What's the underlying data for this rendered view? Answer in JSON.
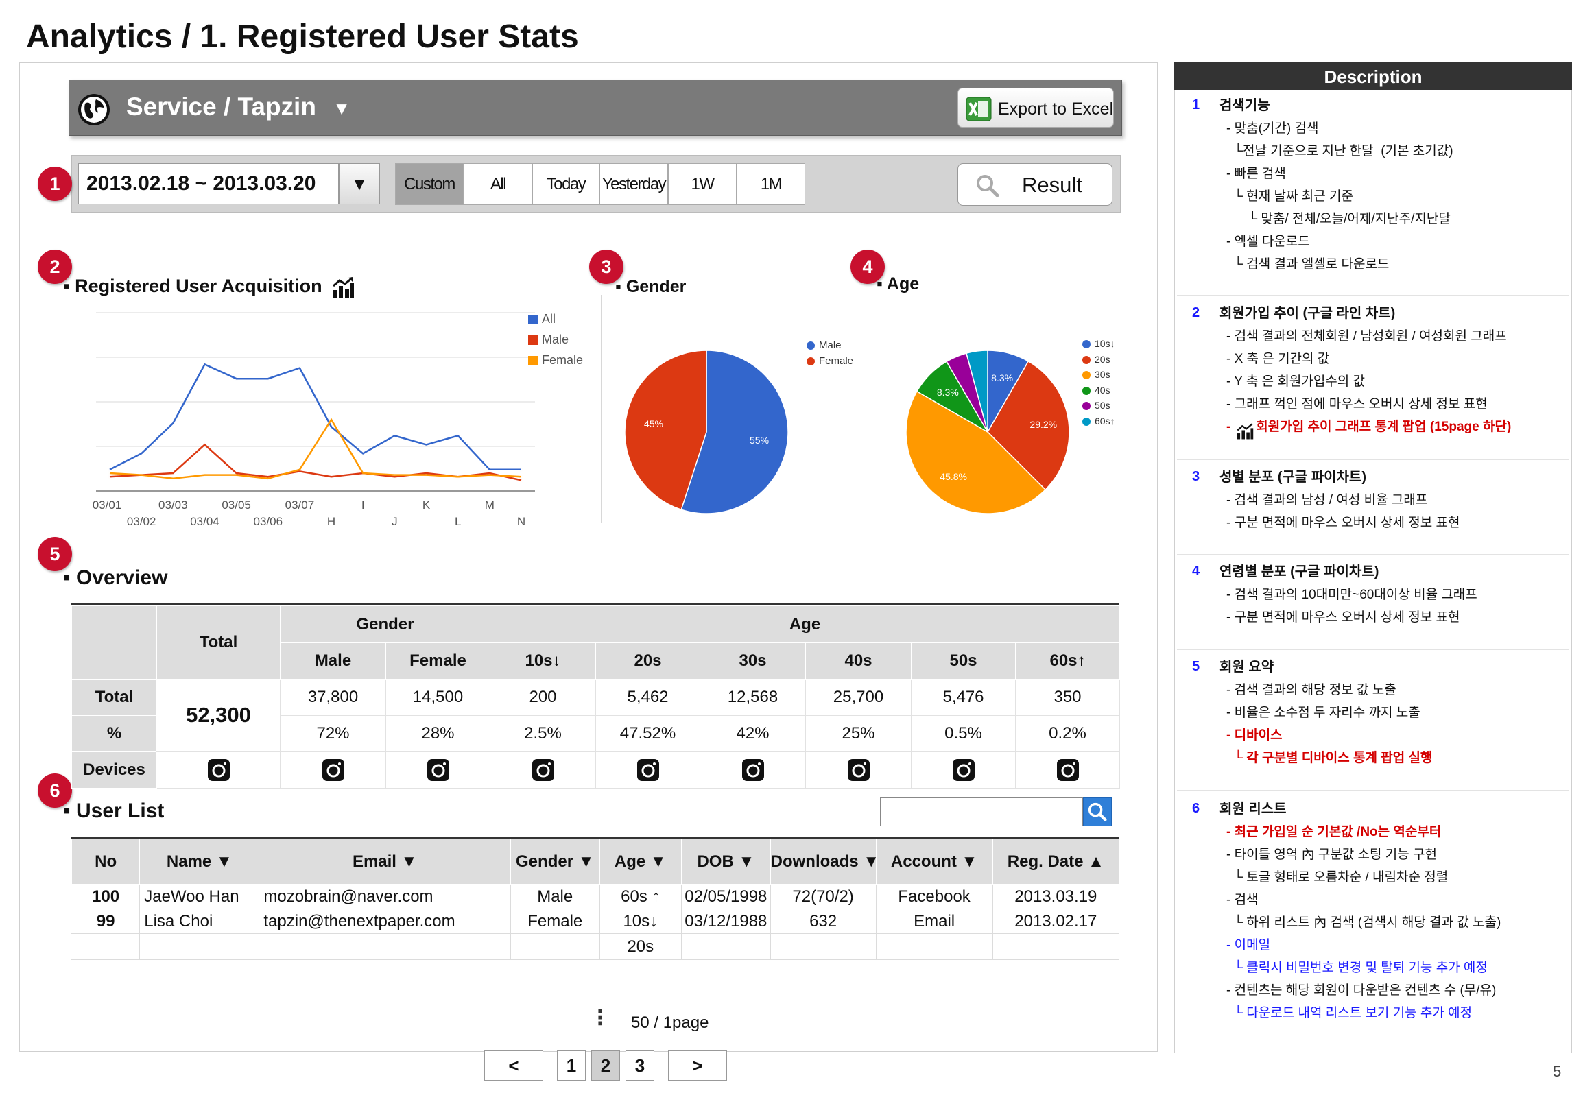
{
  "page": {
    "title": "Analytics / 1. Registered User Stats",
    "number": "5"
  },
  "header": {
    "service_title": "Service / Tapzin",
    "dropdown_glyph": "▼",
    "export_label": "Export to Excel"
  },
  "filter": {
    "date_range": "2013.02.18 ~ 2013.03.20",
    "dropdown_glyph": "▼",
    "quick_buttons": [
      "Custom",
      "All",
      "Today",
      "Yesterday",
      "1W",
      "1M"
    ],
    "active_button": "Custom",
    "result_label": "Result"
  },
  "badges": [
    "1",
    "2",
    "3",
    "4",
    "5",
    "6"
  ],
  "sections": {
    "acquisition": "Registered User Acquisition",
    "gender": "Gender",
    "age": "Age",
    "overview": "Overview",
    "user_list": "User List"
  },
  "chart_data": [
    {
      "type": "line",
      "title": "Registered User Acquisition",
      "categories": [
        "03/01",
        "03/02",
        "03/03",
        "03/04",
        "03/05",
        "03/06",
        "03/07",
        "H",
        "I",
        "J",
        "K",
        "L",
        "M",
        "N"
      ],
      "series": [
        {
          "name": "All",
          "color": "#3366cc",
          "values": [
            12,
            21,
            38,
            71,
            63,
            63,
            69,
            36,
            21,
            31,
            26,
            31,
            12,
            12
          ]
        },
        {
          "name": "Male",
          "color": "#dc3912",
          "values": [
            8,
            9,
            10,
            26,
            10,
            8,
            11,
            8,
            10,
            8,
            10,
            8,
            10,
            6
          ]
        },
        {
          "name": "Female",
          "color": "#ff9900",
          "values": [
            10,
            9,
            7,
            9,
            9,
            7,
            12,
            40,
            10,
            9,
            9,
            8,
            9,
            8
          ]
        }
      ],
      "ylim": [
        0,
        100
      ],
      "grid": true,
      "legend": "right"
    },
    {
      "type": "pie",
      "title": "Gender",
      "slices": [
        {
          "label": "Male",
          "value": 55,
          "display": "55%",
          "color": "#3366cc"
        },
        {
          "label": "Female",
          "value": 45,
          "display": "45%",
          "color": "#dc3912"
        }
      ],
      "legend": "top-right"
    },
    {
      "type": "pie",
      "title": "Age",
      "slices": [
        {
          "label": "10s↓",
          "value": 8.3,
          "display": "8.3%",
          "color": "#3366cc"
        },
        {
          "label": "20s",
          "value": 29.2,
          "display": "29.2%",
          "color": "#dc3912"
        },
        {
          "label": "30s",
          "value": 45.8,
          "display": "45.8%",
          "color": "#ff9900"
        },
        {
          "label": "40s",
          "value": 8.3,
          "display": "8.3%",
          "color": "#109618"
        },
        {
          "label": "50s",
          "value": 4.2,
          "display": "",
          "color": "#990099"
        },
        {
          "label": "60s↑",
          "value": 4.2,
          "display": "",
          "color": "#0099c6"
        }
      ],
      "legend": "right"
    }
  ],
  "overview": {
    "total_header": "Total",
    "gender_header": "Gender",
    "age_header": "Age",
    "sub_headers": [
      "Male",
      "Female",
      "10s↓",
      "20s",
      "30s",
      "40s",
      "50s",
      "60s↑"
    ],
    "row_labels": [
      "Total",
      "%",
      "Devices"
    ],
    "total_value": "52,300",
    "totals": [
      "37,800",
      "14,500",
      "200",
      "5,462",
      "12,568",
      "25,700",
      "5,476",
      "350"
    ],
    "percents": [
      "72%",
      "28%",
      "2.5%",
      "47.52%",
      "42%",
      "25%",
      "0.5%",
      "0.2%"
    ],
    "device_icon": "camera-icon"
  },
  "user_list": {
    "search_value": "",
    "columns": [
      "No",
      "Name ▼",
      "Email ▼",
      "Gender ▼",
      "Age ▼",
      "DOB ▼",
      "Downloads ▼",
      "Account ▼",
      "Reg. Date ▲"
    ],
    "rows": [
      [
        "100",
        "JaeWoo Han",
        "mozobrain@naver.com",
        "Male",
        "60s ↑",
        "02/05/1998",
        "72(70/2)",
        "Facebook",
        "2013.03.19"
      ],
      [
        "99",
        "Lisa Choi",
        "tapzin@thenextpaper.com",
        "Female",
        "10s↓",
        "03/12/1988",
        "632",
        "Email",
        "2013.02.17"
      ],
      [
        "",
        "",
        "",
        "",
        "20s",
        "",
        "",
        "",
        ""
      ]
    ],
    "more_glyph": "⋮",
    "page_summary": "50 / 1page"
  },
  "pagination": {
    "prev": "<",
    "pages": [
      "1",
      "2",
      "3"
    ],
    "active": "2",
    "next": ">"
  },
  "description": {
    "header": "Description",
    "items": [
      {
        "num": "1",
        "title": "검색기능",
        "lines": [
          {
            "text": "- 맞춤(기간) 검색",
            "style": ""
          },
          {
            "text": "  └전날 기준으로 지난 한달  (기본 초기값)",
            "style": ""
          },
          {
            "text": "- 빠른 검색",
            "style": ""
          },
          {
            "text": "  └ 현재 날짜 최근 기준",
            "style": ""
          },
          {
            "text": "      └ 맞춤/ 전체/오늘/어제/지난주/지난달",
            "style": ""
          },
          {
            "text": "- 엑셀 다운로드",
            "style": ""
          },
          {
            "text": "  └ 검색 결과 엘셀로 다운로드",
            "style": ""
          }
        ]
      },
      {
        "num": "2",
        "title": "회원가입 추이 (구글 라인 차트)",
        "lines": [
          {
            "text": "- 검색 결과의 전체회원 / 남성회원 / 여성회원 그래프",
            "style": ""
          },
          {
            "text": "- X 축 은 기간의 값",
            "style": ""
          },
          {
            "text": "- Y 축 은 회원가입수의 값",
            "style": ""
          },
          {
            "text": "- 그래프 꺽인 점에 마우스 오버시 상세 정보 표현",
            "style": ""
          },
          {
            "text": "-       회원가입 추이 그래프 통계 팝업 (15page 하단)",
            "style": "red"
          }
        ]
      },
      {
        "num": "3",
        "title": "성별 분포 (구글 파이차트)",
        "lines": [
          {
            "text": "- 검색 결과의 남성 / 여성 비율 그래프",
            "style": ""
          },
          {
            "text": "- 구분 면적에 마우스 오버시 상세 정보 표현",
            "style": ""
          }
        ]
      },
      {
        "num": "4",
        "title": "연령별 분포 (구글 파이차트)",
        "lines": [
          {
            "text": "- 검색 결과의 10대미만~60대이상 비율 그래프",
            "style": ""
          },
          {
            "text": "- 구분 면적에 마우스 오버시 상세 정보 표현",
            "style": ""
          }
        ]
      },
      {
        "num": "5",
        "title": "회원 요약",
        "lines": [
          {
            "text": "- 검색 결과의 해당 정보 값 노출",
            "style": ""
          },
          {
            "text": "- 비율은 소수점 두 자리수 까지 노출",
            "style": ""
          },
          {
            "text": "- 디바이스",
            "style": "red"
          },
          {
            "text": "  └ 각 구분별 디바이스 통계 팝업 실행",
            "style": "red"
          }
        ]
      },
      {
        "num": "6",
        "title": "회원 리스트",
        "lines": [
          {
            "text": "- 최근 가입일 순 기본값 /No는 역순부터",
            "style": "red"
          },
          {
            "text": "- 타이틀 영역 內 구분값 소팅 기능 구현",
            "style": ""
          },
          {
            "text": "  └ 토글 형태로 오름차순 / 내림차순 정렬",
            "style": ""
          },
          {
            "text": "- 검색",
            "style": ""
          },
          {
            "text": "  └ 하위 리스트 內 검색 (검색시 해당 결과 값 노출)",
            "style": ""
          },
          {
            "text": "- 이메일",
            "style": "blue"
          },
          {
            "text": "  └ 클릭시 비밀번호 변경 및 탈퇴 기능 추가 예정",
            "style": "blue"
          },
          {
            "text": "- 컨텐츠는 해당 회원이 다운받은 컨텐츠 수 (무/유)",
            "style": ""
          },
          {
            "text": "  └ 다운로드 내역 리스트 보기 기능 추가 예정",
            "style": "blue"
          }
        ]
      }
    ]
  },
  "icons": {
    "globe": "globe-icon",
    "excel": "excel-icon",
    "search": "search-icon",
    "chart": "chart-icon",
    "device": "camera-icon"
  }
}
